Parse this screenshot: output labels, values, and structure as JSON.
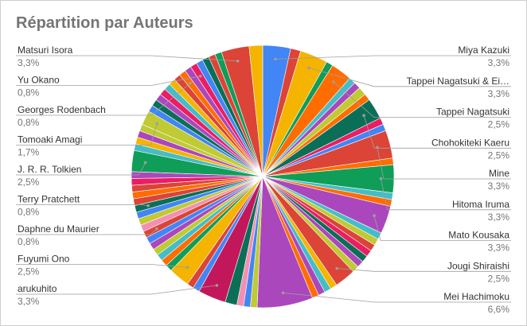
{
  "chart_data": {
    "type": "pie",
    "title": "Répartition par Auteurs",
    "slices_clockwise_from_top": [
      {
        "value": 3.3,
        "color": "#4285F4"
      },
      {
        "value": 1.2,
        "color": "#DB4437"
      },
      {
        "value": 3.3,
        "color": "#F4B400"
      },
      {
        "value": 0.8,
        "color": "#0F9D58"
      },
      {
        "value": 2.5,
        "color": "#FF6D00"
      },
      {
        "value": 0.8,
        "color": "#46BDC6"
      },
      {
        "value": 0.8,
        "color": "#AB47BC"
      },
      {
        "value": 1.0,
        "color": "#C0CA33"
      },
      {
        "value": 0.8,
        "color": "#FF6D00"
      },
      {
        "value": 2.5,
        "color": "#0B6F57"
      },
      {
        "value": 0.8,
        "color": "#E91E63"
      },
      {
        "value": 0.8,
        "color": "#4285F4"
      },
      {
        "value": 3.3,
        "color": "#DB4437"
      },
      {
        "value": 0.8,
        "color": "#FF6D00"
      },
      {
        "value": 3.3,
        "color": "#0F9D58"
      },
      {
        "value": 0.8,
        "color": "#46BDC6"
      },
      {
        "value": 0.8,
        "color": "#FF6D00"
      },
      {
        "value": 3.3,
        "color": "#AB47BC"
      },
      {
        "value": 0.8,
        "color": "#46BDC6"
      },
      {
        "value": 0.8,
        "color": "#C0CA33"
      },
      {
        "value": 0.8,
        "color": "#DB4437"
      },
      {
        "value": 0.8,
        "color": "#E91E63"
      },
      {
        "value": 0.8,
        "color": "#0B6F57"
      },
      {
        "value": 0.8,
        "color": "#AB47BC"
      },
      {
        "value": 0.8,
        "color": "#C0CA33"
      },
      {
        "value": 2.5,
        "color": "#DB4437"
      },
      {
        "value": 0.8,
        "color": "#F4B400"
      },
      {
        "value": 0.8,
        "color": "#46BDC6"
      },
      {
        "value": 0.8,
        "color": "#AB47BC"
      },
      {
        "value": 0.8,
        "color": "#FF6D00"
      },
      {
        "value": 6.6,
        "color": "#AB47BC"
      },
      {
        "value": 0.8,
        "color": "#C0CA33"
      },
      {
        "value": 0.8,
        "color": "#4285F4"
      },
      {
        "value": 0.8,
        "color": "#F48FB1"
      },
      {
        "value": 1.4,
        "color": "#0B6F57"
      },
      {
        "value": 3.3,
        "color": "#C2185B"
      },
      {
        "value": 0.8,
        "color": "#4285F4"
      },
      {
        "value": 0.8,
        "color": "#DB4437"
      },
      {
        "value": 2.5,
        "color": "#F4B400"
      },
      {
        "value": 0.8,
        "color": "#0F9D58"
      },
      {
        "value": 0.8,
        "color": "#FF6D00"
      },
      {
        "value": 0.8,
        "color": "#46BDC6"
      },
      {
        "value": 0.8,
        "color": "#C0CA33"
      },
      {
        "value": 0.8,
        "color": "#AB47BC"
      },
      {
        "value": 0.8,
        "color": "#4285F4"
      },
      {
        "value": 0.8,
        "color": "#DB4437"
      },
      {
        "value": 0.8,
        "color": "#F48FB1"
      },
      {
        "value": 0.8,
        "color": "#C0CA33"
      },
      {
        "value": 0.8,
        "color": "#4285F4"
      },
      {
        "value": 0.8,
        "color": "#0B6F57"
      },
      {
        "value": 0.8,
        "color": "#DB4437"
      },
      {
        "value": 0.8,
        "color": "#FF6D00"
      },
      {
        "value": 0.8,
        "color": "#DB4437"
      },
      {
        "value": 0.8,
        "color": "#E91E63"
      },
      {
        "value": 0.8,
        "color": "#AB47BC"
      },
      {
        "value": 2.5,
        "color": "#0F9D58"
      },
      {
        "value": 0.8,
        "color": "#46BDC6"
      },
      {
        "value": 0.8,
        "color": "#F4B400"
      },
      {
        "value": 0.8,
        "color": "#AB47BC"
      },
      {
        "value": 0.8,
        "color": "#C0CA33"
      },
      {
        "value": 1.7,
        "color": "#C0CA33"
      },
      {
        "value": 0.8,
        "color": "#4285F4"
      },
      {
        "value": 0.8,
        "color": "#0B6F57"
      },
      {
        "value": 0.8,
        "color": "#AB47BC"
      },
      {
        "value": 0.8,
        "color": "#E91E63"
      },
      {
        "value": 0.8,
        "color": "#46BDC6"
      },
      {
        "value": 0.8,
        "color": "#F4B400"
      },
      {
        "value": 0.8,
        "color": "#DB4437"
      },
      {
        "value": 0.8,
        "color": "#FF6D00"
      },
      {
        "value": 0.8,
        "color": "#AB47BC"
      },
      {
        "value": 0.8,
        "color": "#E91E63"
      },
      {
        "value": 0.8,
        "color": "#4285F4"
      },
      {
        "value": 0.8,
        "color": "#0B6F57"
      },
      {
        "value": 0.8,
        "color": "#DB4437"
      },
      {
        "value": 0.8,
        "color": "#0F9D58"
      },
      {
        "value": 3.3,
        "color": "#DB4437"
      },
      {
        "value": 1.6,
        "color": "#F4B400"
      }
    ],
    "labels": [
      {
        "name": "Miya Kazuki",
        "pct": "3,3%",
        "side": "right",
        "slice": 0
      },
      {
        "name": "Tappei Nagatsuki & Ei…",
        "pct": "3,3%",
        "side": "right",
        "slice": 2
      },
      {
        "name": "Tappei Nagatsuki",
        "pct": "2,5%",
        "side": "right",
        "slice": 4
      },
      {
        "name": "Chohokiteki Kaeru",
        "pct": "2,5%",
        "side": "right",
        "slice": 9
      },
      {
        "name": "Mine",
        "pct": "3,3%",
        "side": "right",
        "slice": 12
      },
      {
        "name": "Hitoma Iruma",
        "pct": "3,3%",
        "side": "right",
        "slice": 14
      },
      {
        "name": "Mato Kousaka",
        "pct": "3,3%",
        "side": "right",
        "slice": 17
      },
      {
        "name": "Jougi Shiraishi",
        "pct": "2,5%",
        "side": "right",
        "slice": 25
      },
      {
        "name": "Mei Hachimoku",
        "pct": "6,6%",
        "side": "right",
        "slice": 30
      },
      {
        "name": "Matsuri Isora",
        "pct": "3,3%",
        "side": "left",
        "slice": 75
      },
      {
        "name": "Yu Okano",
        "pct": "0,8%",
        "side": "left",
        "slice": 70
      },
      {
        "name": "Georges Rodenbach",
        "pct": "0,8%",
        "side": "left",
        "slice": 68
      },
      {
        "name": "Tomoaki Amagi",
        "pct": "1,7%",
        "side": "left",
        "slice": 60
      },
      {
        "name": "J. R. R. Tolkien",
        "pct": "2,5%",
        "side": "left",
        "slice": 55
      },
      {
        "name": "Terry Pratchett",
        "pct": "0,8%",
        "side": "left",
        "slice": 49
      },
      {
        "name": "Daphne du Maurier",
        "pct": "0,8%",
        "side": "left",
        "slice": 45
      },
      {
        "name": "Fuyumi Ono",
        "pct": "2,5%",
        "side": "left",
        "slice": 38
      },
      {
        "name": "arukuhito",
        "pct": "3,3%",
        "side": "left",
        "slice": 35
      }
    ]
  }
}
